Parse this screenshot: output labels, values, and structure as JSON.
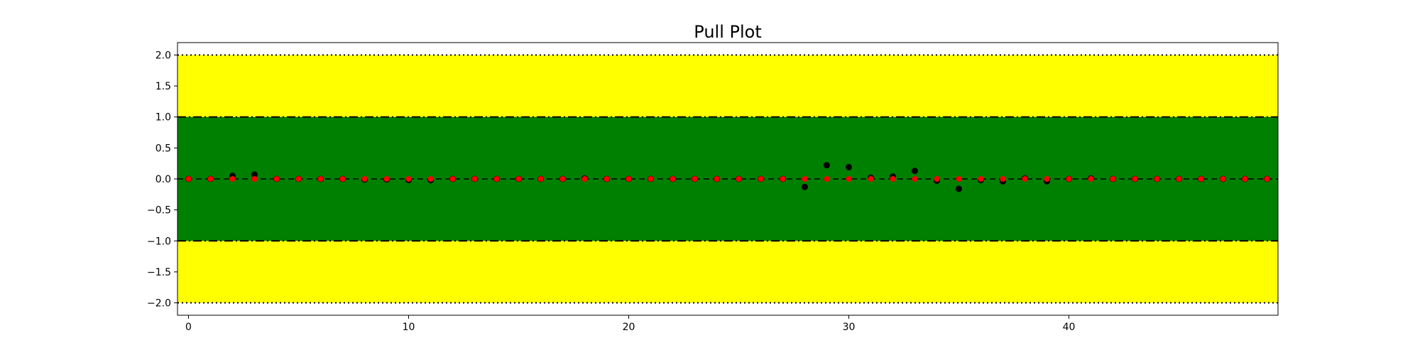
{
  "chart_data": {
    "type": "scatter",
    "title": "Pull Plot",
    "xlabel": "",
    "ylabel": "",
    "xlim": [
      -0.5,
      49.5
    ],
    "ylim": [
      -2.2,
      2.2
    ],
    "xticks": [
      0,
      10,
      20,
      30,
      40
    ],
    "xtick_labels": [
      "0",
      "10",
      "20",
      "30",
      "40"
    ],
    "yticks": [
      2.0,
      1.5,
      1.0,
      0.5,
      0.0,
      -0.5,
      -1.0,
      -1.5,
      -2.0
    ],
    "ytick_labels": [
      "2.0",
      "1.5",
      "1.0",
      "0.5",
      "0.0",
      "−0.5",
      "−1.0",
      "−1.5",
      "−2.0"
    ],
    "grid": false,
    "bands": [
      {
        "from": -2.0,
        "to": 2.0,
        "color": "#ffff00"
      },
      {
        "from": -1.0,
        "to": 1.0,
        "color": "#008000"
      }
    ],
    "reference_lines": [
      {
        "y": 2.0,
        "style": "dotted"
      },
      {
        "y": 1.0,
        "style": "dashdot"
      },
      {
        "y": 0.0,
        "style": "dashed"
      },
      {
        "y": -1.0,
        "style": "dashdot"
      },
      {
        "y": -2.0,
        "style": "dotted"
      }
    ],
    "series": [
      {
        "color": "#000000",
        "x": [
          0,
          1,
          2,
          3,
          4,
          5,
          6,
          7,
          8,
          9,
          10,
          11,
          12,
          13,
          14,
          15,
          16,
          17,
          18,
          19,
          20,
          21,
          22,
          23,
          24,
          25,
          26,
          27,
          28,
          29,
          30,
          31,
          32,
          33,
          34,
          35,
          36,
          37,
          38,
          39,
          40,
          41,
          42,
          43,
          44,
          45,
          46,
          47,
          48,
          49
        ],
        "y": [
          0.0,
          0.0,
          0.05,
          0.07,
          0.0,
          0.0,
          0.0,
          0.0,
          -0.01,
          -0.01,
          -0.02,
          -0.02,
          0.0,
          0.0,
          0.0,
          0.0,
          0.0,
          0.0,
          0.01,
          0.0,
          0.0,
          0.0,
          0.0,
          0.0,
          0.0,
          0.0,
          0.0,
          0.0,
          -0.13,
          0.22,
          0.19,
          0.02,
          0.04,
          0.13,
          -0.03,
          -0.16,
          -0.02,
          -0.04,
          0.01,
          -0.04,
          0.0,
          0.01,
          0.0,
          0.0,
          0.0,
          0.0,
          0.0,
          0.0,
          0.0,
          0.0
        ]
      },
      {
        "color": "#ff0000",
        "x": [
          0,
          1,
          2,
          3,
          4,
          5,
          6,
          7,
          8,
          9,
          10,
          11,
          12,
          13,
          14,
          15,
          16,
          17,
          18,
          19,
          20,
          21,
          22,
          23,
          24,
          25,
          26,
          27,
          28,
          29,
          30,
          31,
          32,
          33,
          34,
          35,
          36,
          37,
          38,
          39,
          40,
          41,
          42,
          43,
          44,
          45,
          46,
          47,
          48,
          49
        ],
        "y": [
          0.0,
          0.0,
          0.0,
          0.0,
          0.0,
          0.0,
          0.0,
          0.0,
          0.0,
          0.0,
          0.0,
          0.0,
          0.0,
          0.0,
          0.0,
          0.0,
          0.0,
          0.0,
          0.0,
          0.0,
          0.0,
          0.0,
          0.0,
          0.0,
          0.0,
          0.0,
          0.0,
          0.0,
          0.0,
          0.0,
          0.0,
          0.0,
          0.0,
          0.0,
          0.0,
          0.0,
          0.0,
          0.0,
          0.0,
          0.0,
          0.0,
          0.0,
          0.0,
          0.0,
          0.0,
          0.0,
          0.0,
          0.0,
          0.0,
          0.0
        ]
      }
    ]
  }
}
